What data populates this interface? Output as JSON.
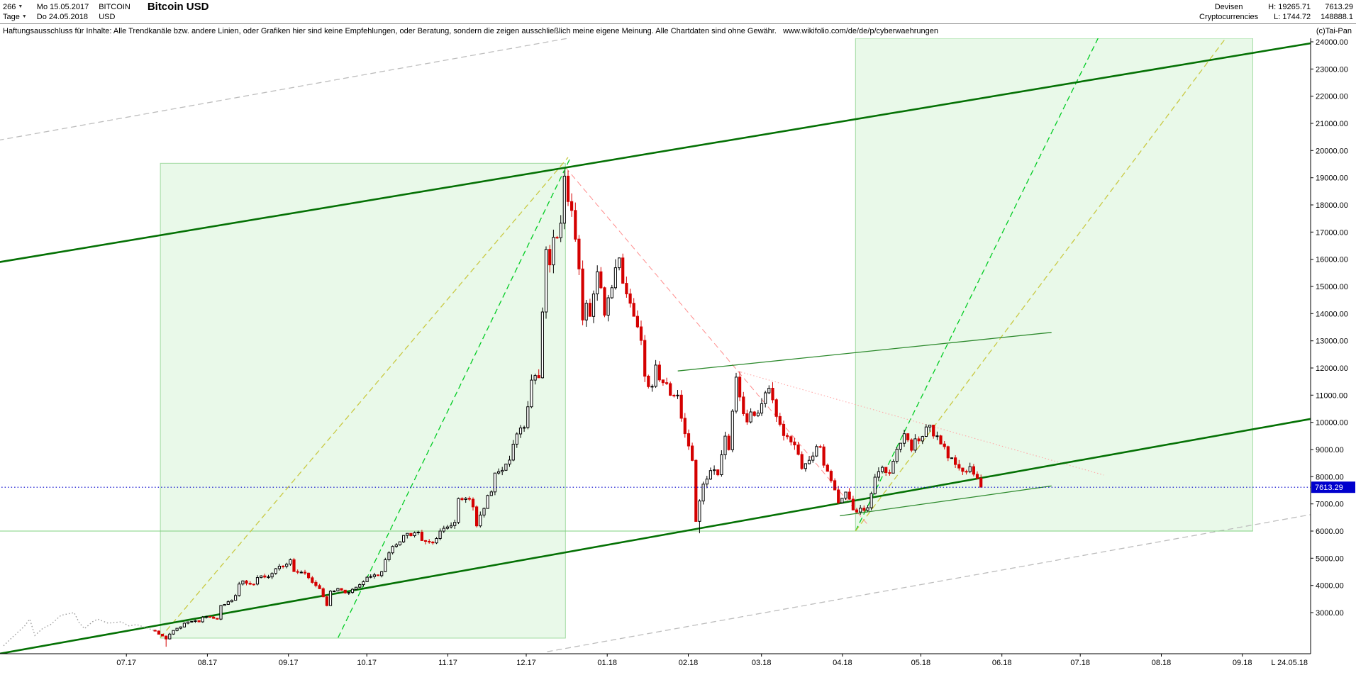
{
  "header": {
    "period_count": "266",
    "period_unit": "Tage",
    "date_from": "Mo 15.05.2017",
    "date_to": "Do 24.05.2018",
    "symbol": "BITCOIN",
    "currency": "USD",
    "title": "Bitcoin USD",
    "category_line1": "Devisen",
    "category_line2": "Cryptocurrencies",
    "high_label": "H: 19265.71",
    "low_label": "L: 1744.72",
    "last_price": "7613.29",
    "volume": "148888.1"
  },
  "disclaimer": {
    "text": "Haftungsausschluss für Inhalte: Alle Trendkanäle bzw. andere Linien, oder Grafiken hier sind keine Empfehlungen, oder Beratung, sondern die zeigen ausschließlich meine eigene Meinung. Alle Chartdaten sind ohne Gewähr.",
    "url": "www.wikifolio.com/de/de/p/cyberwaehrungen",
    "copyright": "(c)Tai-Pan"
  },
  "chart_data": {
    "type": "candlestick",
    "title": "Bitcoin USD",
    "current_price": 7613.29,
    "period_high": 19265.71,
    "period_low": 1744.72,
    "y_axis": {
      "min": 3000,
      "max": 24000,
      "step": 1000
    },
    "x_axis": {
      "month_labels": [
        {
          "text": "07.17",
          "t": 47
        },
        {
          "text": "08.17",
          "t": 78
        },
        {
          "text": "09.17",
          "t": 109
        },
        {
          "text": "10.17",
          "t": 139
        },
        {
          "text": "11.17",
          "t": 170
        },
        {
          "text": "12.17",
          "t": 200
        },
        {
          "text": "01.18",
          "t": 231
        },
        {
          "text": "02.18",
          "t": 262
        },
        {
          "text": "03.18",
          "t": 290
        },
        {
          "text": "04.18",
          "t": 321
        },
        {
          "text": "05.18",
          "t": 351
        },
        {
          "text": "06.18",
          "t": 382
        },
        {
          "text": "07.18",
          "t": 412
        },
        {
          "text": "08.18",
          "t": 443
        },
        {
          "text": "09.18",
          "t": 474
        }
      ],
      "end_label": "L 24.05.18"
    },
    "colors": {
      "accent_blue": "#0000cd",
      "candle_up_fill": "#ffffff",
      "candle_up_stroke": "#000000",
      "candle_down": "#d40000",
      "box_fill": "rgba(120,220,120,0.16)",
      "box_stroke": "rgba(60,180,60,0.45)"
    },
    "boxes": [
      {
        "name": "highlight-zone-2017-rally",
        "t0": 60,
        "t1": 215,
        "p0": 2060,
        "p1": 19530
      },
      {
        "name": "highlight-zone-2018-projection",
        "t0": 326,
        "t1": 478,
        "p0": 6000,
        "p1": 24560
      }
    ],
    "lines": [
      {
        "name": "gray-channel-upper",
        "color": "#bdbdbd",
        "style": "dashed",
        "width": 1.3,
        "pts": [
          [
            -2,
            20380
          ],
          [
            242,
            24580
          ]
        ]
      },
      {
        "name": "gray-channel-lower",
        "color": "#bdbdbd",
        "style": "dashed",
        "width": 1.3,
        "pts": [
          [
            208,
            1560
          ],
          [
            501,
            6620
          ]
        ]
      },
      {
        "name": "horizontal-support-6000",
        "color": "#7fd07f",
        "style": "solid",
        "width": 1,
        "pts": [
          [
            -2,
            6000
          ],
          [
            478,
            6000
          ]
        ]
      },
      {
        "name": "fan-line-yellow-left",
        "color": "#c9c943",
        "style": "dashed",
        "width": 1.3,
        "pts": [
          [
            60,
            2080
          ],
          [
            216,
            19750
          ]
        ]
      },
      {
        "name": "fan-line-green-left",
        "color": "#00cc22",
        "style": "dashed",
        "width": 1.3,
        "pts": [
          [
            128,
            2080
          ],
          [
            217,
            19750
          ]
        ]
      },
      {
        "name": "fan-line-green-right",
        "color": "#00cc22",
        "style": "dashed",
        "width": 1.3,
        "pts": [
          [
            326,
            6000
          ],
          [
            421,
            24560
          ]
        ]
      },
      {
        "name": "fan-line-yellow-right",
        "color": "#c9c943",
        "style": "dashed",
        "width": 1.3,
        "pts": [
          [
            326,
            6000
          ],
          [
            471,
            24560
          ]
        ]
      },
      {
        "name": "red-trend-steep",
        "color": "#ff8e8e",
        "style": "dashed",
        "width": 1,
        "pts": [
          [
            215,
            19380
          ],
          [
            331,
            6200
          ]
        ]
      },
      {
        "name": "red-trend-shallow",
        "color": "#ffa6a6",
        "style": "dotted",
        "width": 1.1,
        "pts": [
          [
            281,
            11880
          ],
          [
            421,
            8060
          ]
        ]
      },
      {
        "name": "trend-channel-upper",
        "color": "#047104",
        "style": "solid",
        "width": 2.6,
        "pts": [
          [
            -2,
            15890
          ],
          [
            501,
            23960
          ]
        ]
      },
      {
        "name": "trend-channel-lower",
        "color": "#047104",
        "style": "solid",
        "width": 2.6,
        "pts": [
          [
            -2,
            1480
          ],
          [
            501,
            10140
          ]
        ]
      },
      {
        "name": "early-data-line",
        "color": "#9a9a9a",
        "style": "dotted",
        "width": 1.4,
        "pts": [
          [
            0,
            1780
          ],
          [
            4,
            2150
          ],
          [
            8,
            2500
          ],
          [
            10,
            2760
          ],
          [
            12,
            2160
          ],
          [
            15,
            2420
          ],
          [
            18,
            2560
          ],
          [
            22,
            2900
          ],
          [
            27,
            3000
          ],
          [
            29,
            2620
          ],
          [
            31,
            2410
          ],
          [
            34,
            2660
          ],
          [
            36,
            2760
          ],
          [
            40,
            2610
          ],
          [
            45,
            2660
          ],
          [
            48,
            2510
          ],
          [
            51,
            2560
          ],
          [
            54,
            2460
          ],
          [
            58,
            2330
          ]
        ]
      },
      {
        "name": "minor-support-line",
        "color": "#2d8a2d",
        "style": "solid",
        "width": 1.3,
        "above": true,
        "pts": [
          [
            320,
            6560
          ],
          [
            401,
            7660
          ]
        ]
      },
      {
        "name": "minor-resistance-line",
        "color": "#2d8a2d",
        "style": "solid",
        "width": 1.3,
        "above": true,
        "pts": [
          [
            258,
            11890
          ],
          [
            401,
            13310
          ]
        ]
      },
      {
        "name": "last-price-line",
        "color": "#0000cd",
        "style": "dotted",
        "width": 1.2,
        "above": true,
        "pts": [
          [
            -2,
            7613.29
          ],
          [
            501,
            7613.29
          ]
        ]
      }
    ],
    "candles": {
      "t_start": 58,
      "t_end": 374,
      "bar_width": 3.2,
      "forced_wicks": [
        {
          "t": 214,
          "high": 19265.71
        },
        {
          "t": 63,
          "low": 1744.72
        },
        {
          "t": 267,
          "low": 5920
        }
      ],
      "anchors": [
        [
          58,
          2300
        ],
        [
          60,
          2150
        ],
        [
          62,
          1870
        ],
        [
          65,
          2350
        ],
        [
          68,
          2500
        ],
        [
          71,
          2650
        ],
        [
          75,
          2700
        ],
        [
          78,
          2850
        ],
        [
          81,
          2750
        ],
        [
          84,
          3250
        ],
        [
          87,
          3450
        ],
        [
          90,
          4000
        ],
        [
          92,
          4150
        ],
        [
          95,
          4050
        ],
        [
          98,
          4300
        ],
        [
          101,
          4350
        ],
        [
          104,
          4600
        ],
        [
          107,
          4750
        ],
        [
          109,
          4900
        ],
        [
          112,
          4550
        ],
        [
          115,
          4400
        ],
        [
          118,
          4200
        ],
        [
          121,
          3900
        ],
        [
          123,
          3250
        ],
        [
          125,
          3700
        ],
        [
          128,
          3900
        ],
        [
          131,
          3650
        ],
        [
          134,
          3850
        ],
        [
          137,
          4150
        ],
        [
          140,
          4350
        ],
        [
          143,
          4400
        ],
        [
          146,
          4700
        ],
        [
          149,
          5450
        ],
        [
          152,
          5700
        ],
        [
          155,
          5850
        ],
        [
          158,
          6000
        ],
        [
          161,
          5650
        ],
        [
          164,
          5550
        ],
        [
          167,
          5900
        ],
        [
          170,
          6150
        ],
        [
          173,
          6450
        ],
        [
          175,
          7150
        ],
        [
          178,
          7150
        ],
        [
          180,
          6500
        ],
        [
          181,
          5950
        ],
        [
          183,
          6550
        ],
        [
          185,
          7250
        ],
        [
          187,
          7800
        ],
        [
          190,
          8200
        ],
        [
          193,
          8600
        ],
        [
          196,
          9250
        ],
        [
          199,
          9900
        ],
        [
          201,
          11000
        ],
        [
          203,
          11600
        ],
        [
          205,
          11700
        ],
        [
          207,
          16200
        ],
        [
          208,
          16700
        ],
        [
          209,
          15100
        ],
        [
          211,
          16700
        ],
        [
          213,
          17200
        ],
        [
          214,
          19100
        ],
        [
          216,
          18700
        ],
        [
          218,
          17600
        ],
        [
          220,
          15800
        ],
        [
          221,
          13900
        ],
        [
          223,
          14600
        ],
        [
          225,
          13900
        ],
        [
          227,
          15400
        ],
        [
          229,
          14400
        ],
        [
          231,
          13900
        ],
        [
          233,
          15100
        ],
        [
          235,
          16000
        ],
        [
          236,
          17100
        ],
        [
          238,
          15000
        ],
        [
          240,
          14400
        ],
        [
          242,
          13500
        ],
        [
          244,
          14200
        ],
        [
          246,
          11600
        ],
        [
          248,
          11200
        ],
        [
          250,
          12850
        ],
        [
          252,
          11600
        ],
        [
          254,
          11300
        ],
        [
          256,
          10900
        ],
        [
          258,
          11700
        ],
        [
          260,
          10200
        ],
        [
          262,
          9100
        ],
        [
          264,
          8300
        ],
        [
          266,
          6300
        ],
        [
          268,
          7750
        ],
        [
          270,
          8250
        ],
        [
          272,
          8550
        ],
        [
          274,
          8100
        ],
        [
          276,
          9400
        ],
        [
          278,
          8550
        ],
        [
          280,
          10400
        ],
        [
          281,
          11600
        ],
        [
          283,
          10350
        ],
        [
          285,
          9700
        ],
        [
          287,
          10350
        ],
        [
          289,
          10300
        ],
        [
          291,
          11100
        ],
        [
          293,
          11500
        ],
        [
          295,
          10750
        ],
        [
          297,
          9900
        ],
        [
          299,
          9300
        ],
        [
          301,
          9500
        ],
        [
          303,
          9150
        ],
        [
          305,
          8300
        ],
        [
          307,
          8250
        ],
        [
          309,
          8600
        ],
        [
          311,
          9100
        ],
        [
          313,
          8950
        ],
        [
          315,
          8500
        ],
        [
          317,
          7900
        ],
        [
          319,
          7000
        ],
        [
          321,
          6900
        ],
        [
          323,
          7400
        ],
        [
          325,
          6850
        ],
        [
          327,
          6650
        ],
        [
          329,
          6800
        ],
        [
          331,
          6850
        ],
        [
          333,
          7900
        ],
        [
          335,
          8000
        ],
        [
          337,
          8400
        ],
        [
          339,
          8050
        ],
        [
          341,
          8900
        ],
        [
          343,
          8950
        ],
        [
          345,
          9650
        ],
        [
          347,
          9000
        ],
        [
          349,
          9350
        ],
        [
          351,
          9250
        ],
        [
          353,
          9800
        ],
        [
          355,
          9850
        ],
        [
          357,
          9600
        ],
        [
          359,
          9300
        ],
        [
          361,
          8700
        ],
        [
          363,
          8700
        ],
        [
          365,
          8500
        ],
        [
          367,
          8100
        ],
        [
          369,
          8250
        ],
        [
          371,
          8400
        ],
        [
          373,
          7950
        ],
        [
          374,
          7613.29
        ]
      ]
    }
  }
}
